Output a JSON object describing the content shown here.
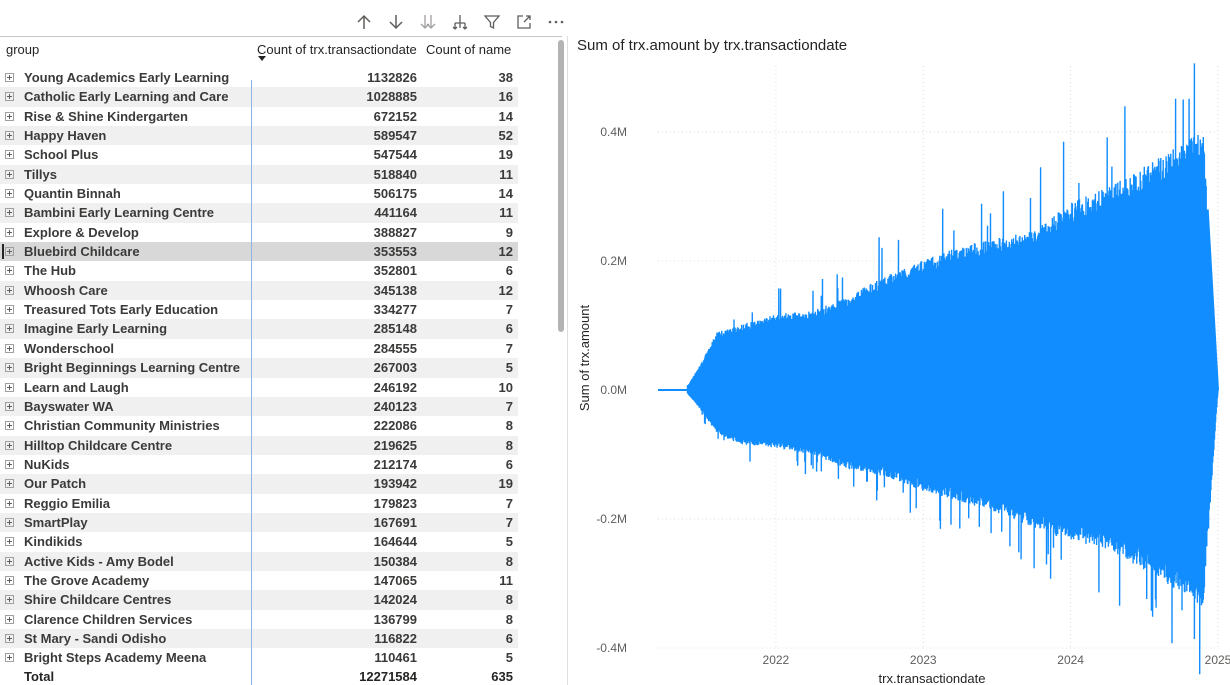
{
  "toolbar": {
    "icons": [
      "drill-up-icon",
      "drill-down-icon",
      "next-level-icon",
      "expand-hierarchy-icon",
      "filter-icon",
      "focus-mode-icon",
      "more-options-icon"
    ]
  },
  "table": {
    "headers": {
      "group": "group",
      "count_date": "Count of trx.transactiondate",
      "count_name": "Count of name"
    },
    "rows": [
      {
        "name": "Young Academics Early Learning",
        "c1": "1132826",
        "c2": "38"
      },
      {
        "name": "Catholic Early Learning and Care",
        "c1": "1028885",
        "c2": "16"
      },
      {
        "name": "Rise & Shine Kindergarten",
        "c1": "672152",
        "c2": "14"
      },
      {
        "name": "Happy Haven",
        "c1": "589547",
        "c2": "52"
      },
      {
        "name": "School Plus",
        "c1": "547544",
        "c2": "19"
      },
      {
        "name": "Tillys",
        "c1": "518840",
        "c2": "11"
      },
      {
        "name": "Quantin Binnah",
        "c1": "506175",
        "c2": "14"
      },
      {
        "name": "Bambini Early Learning Centre",
        "c1": "441164",
        "c2": "11"
      },
      {
        "name": "Explore & Develop",
        "c1": "388827",
        "c2": "9"
      },
      {
        "name": "Bluebird Childcare",
        "c1": "353553",
        "c2": "12"
      },
      {
        "name": "The Hub",
        "c1": "352801",
        "c2": "6"
      },
      {
        "name": "Whoosh Care",
        "c1": "345138",
        "c2": "12"
      },
      {
        "name": "Treasured Tots Early Education",
        "c1": "334277",
        "c2": "7"
      },
      {
        "name": "Imagine Early Learning",
        "c1": "285148",
        "c2": "6"
      },
      {
        "name": "Wonderschool",
        "c1": "284555",
        "c2": "7"
      },
      {
        "name": "Bright Beginnings Learning Centre",
        "c1": "267003",
        "c2": "5"
      },
      {
        "name": "Learn and Laugh",
        "c1": "246192",
        "c2": "10"
      },
      {
        "name": "Bayswater WA",
        "c1": "240123",
        "c2": "7"
      },
      {
        "name": "Christian Community Ministries",
        "c1": "222086",
        "c2": "8"
      },
      {
        "name": "Hilltop Childcare Centre",
        "c1": "219625",
        "c2": "8"
      },
      {
        "name": "NuKids",
        "c1": "212174",
        "c2": "6"
      },
      {
        "name": "Our Patch",
        "c1": "193942",
        "c2": "19"
      },
      {
        "name": "Reggio Emilia",
        "c1": "179823",
        "c2": "7"
      },
      {
        "name": "SmartPlay",
        "c1": "167691",
        "c2": "7"
      },
      {
        "name": "Kindikids",
        "c1": "164644",
        "c2": "5"
      },
      {
        "name": "Active Kids - Amy Bodel",
        "c1": "150384",
        "c2": "8"
      },
      {
        "name": "The Grove Academy",
        "c1": "147065",
        "c2": "11"
      },
      {
        "name": "Shire Childcare Centres",
        "c1": "142024",
        "c2": "8"
      },
      {
        "name": "Clarence Children Services",
        "c1": "136799",
        "c2": "8"
      },
      {
        "name": "St Mary - Sandi Odisho",
        "c1": "116822",
        "c2": "6"
      },
      {
        "name": "Bright Steps Academy Meena",
        "c1": "110461",
        "c2": "5"
      }
    ],
    "selected_row": "Bluebird Childcare",
    "total": {
      "label": "Total",
      "c1": "12271584",
      "c2": "635"
    }
  },
  "chart_data": {
    "type": "area",
    "title": "Sum of trx.amount by trx.transactiondate",
    "xlabel": "trx.transactiondate",
    "ylabel": "Sum of trx.amount",
    "x_ticks": [
      "2022",
      "2023",
      "2024",
      "2025"
    ],
    "y_ticks": [
      "0.4M",
      "0.2M",
      "0.0M",
      "-0.2M",
      "-0.4M"
    ],
    "ylim": [
      -0.4,
      0.4
    ],
    "xlim": [
      2021.2,
      2025.0
    ],
    "grid": true,
    "color": "#118DFF",
    "envelope": {
      "x": [
        2021.2,
        2021.4,
        2021.5,
        2021.6,
        2021.75,
        2022.0,
        2022.25,
        2022.5,
        2022.75,
        2023.0,
        2023.25,
        2023.5,
        2023.75,
        2024.0,
        2024.25,
        2024.5,
        2024.75,
        2024.9,
        2025.0
      ],
      "upper": [
        0.0,
        0.005,
        0.04,
        0.08,
        0.09,
        0.105,
        0.11,
        0.13,
        0.16,
        0.18,
        0.2,
        0.21,
        0.22,
        0.26,
        0.28,
        0.31,
        0.34,
        0.36,
        0.0
      ],
      "lower": [
        0.0,
        -0.005,
        -0.03,
        -0.06,
        -0.075,
        -0.08,
        -0.09,
        -0.11,
        -0.12,
        -0.14,
        -0.155,
        -0.17,
        -0.19,
        -0.21,
        -0.22,
        -0.25,
        -0.28,
        -0.3,
        0.0
      ]
    }
  }
}
